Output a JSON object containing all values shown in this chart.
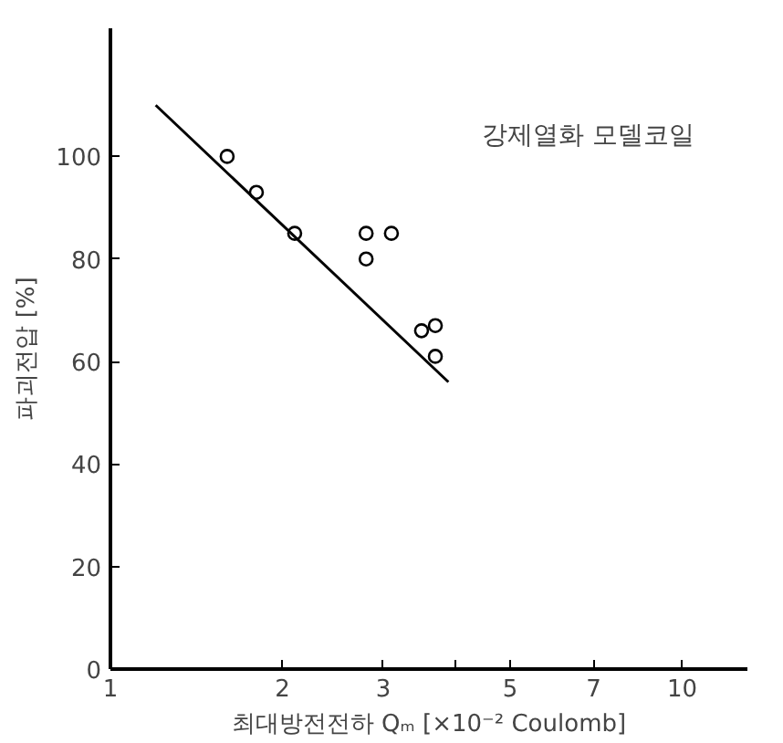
{
  "chart_data": {
    "type": "scatter",
    "annotations": [
      "강제열화 모델코일"
    ],
    "xlabel": "최대방전전하 Qₘ [×10⁻² Coulomb]",
    "ylabel": "파괴전압 [%]",
    "log": "x",
    "xlim": [
      1,
      13
    ],
    "xticks": [
      1,
      2,
      3,
      {
        "value": 4,
        "label": null
      },
      5,
      7,
      10
    ],
    "ylim": [
      0,
      125
    ],
    "yticks": [
      0,
      20,
      40,
      60,
      80,
      100
    ],
    "series": [
      {
        "color": "#000000",
        "marker": "circle",
        "x": [
          1.6,
          1.8,
          2.1,
          2.8,
          3.1,
          2.8,
          3.5,
          3.7,
          3.7
        ],
        "values": [
          100,
          93,
          85,
          85,
          85,
          80,
          66,
          67,
          61
        ]
      },
      {
        "type": "line",
        "color": "#000000",
        "marker": "none",
        "x": [
          1.2,
          3.9
        ],
        "values": [
          110,
          56
        ]
      }
    ]
  }
}
